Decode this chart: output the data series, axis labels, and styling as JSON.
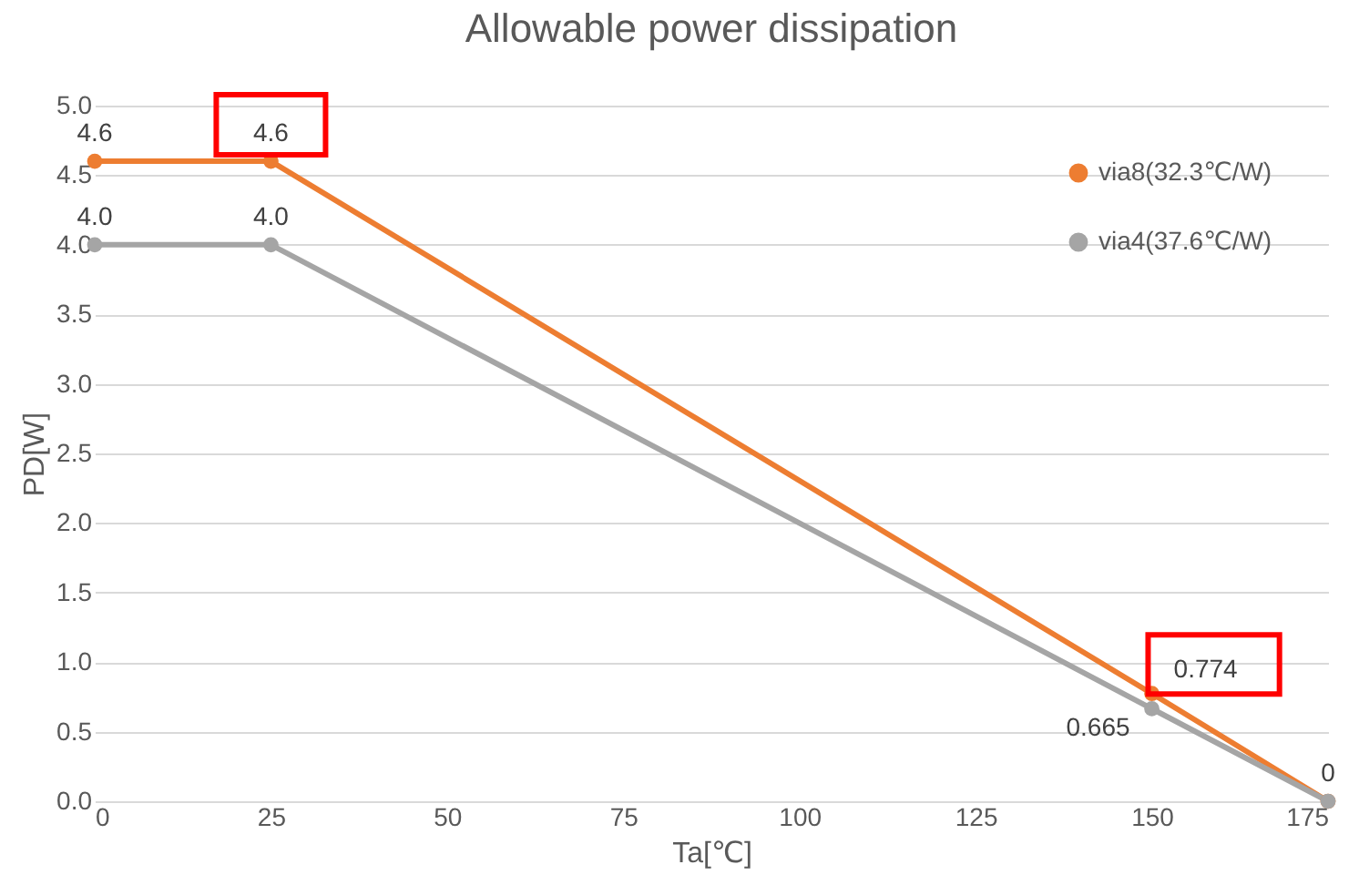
{
  "chart_data": {
    "type": "line",
    "title": "Allowable power dissipation",
    "xlabel": "Ta[℃]",
    "ylabel": "PD[W]",
    "x": [
      0,
      25,
      150,
      175
    ],
    "series": [
      {
        "name": "via8(32.3℃/W)",
        "color": "#ed7d31",
        "values": [
          4.6,
          4.6,
          0.774,
          0
        ],
        "value_labels": [
          "4.6",
          "4.6",
          "0.774",
          "0"
        ]
      },
      {
        "name": "via4(37.6℃/W)",
        "color": "#a5a5a5",
        "values": [
          4.0,
          4.0,
          0.665,
          0
        ],
        "value_labels": [
          "4.0",
          "4.0",
          "0.665",
          null
        ]
      }
    ],
    "xlim": [
      0,
      175
    ],
    "xticks": [
      0,
      25,
      50,
      75,
      100,
      125,
      150,
      175
    ],
    "ylim": [
      0,
      5
    ],
    "yticks": [
      {
        "value": 0,
        "label": "0.0"
      },
      0.5,
      {
        "value": 1,
        "label": "1.0"
      },
      1.5,
      {
        "value": 2,
        "label": "2.0"
      },
      2.5,
      {
        "value": 3,
        "label": "3.0"
      },
      3.5,
      {
        "value": 4,
        "label": "4.0"
      },
      4.5,
      {
        "value": 5,
        "label": "5.0"
      }
    ],
    "grid": "y",
    "legend": "top right",
    "marker": "circle",
    "line_style": "solid"
  }
}
